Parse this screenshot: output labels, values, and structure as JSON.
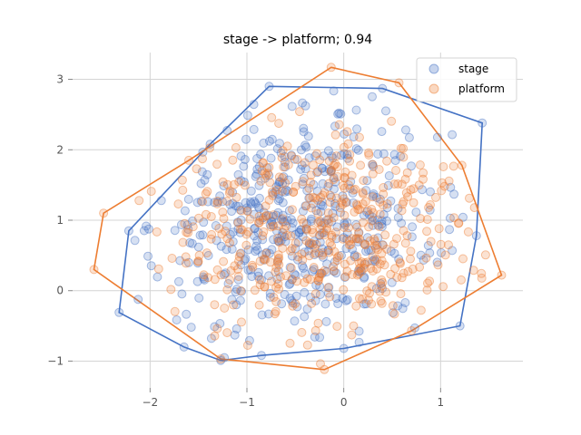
{
  "chart_data": {
    "type": "scatter",
    "title": "stage -> platform; 0.94",
    "xlabel": "",
    "ylabel": "",
    "xlim": [
      -2.8,
      1.85
    ],
    "ylim": [
      -1.38,
      3.38
    ],
    "x_ticks": [
      -2,
      -1,
      0,
      1
    ],
    "y_ticks": [
      -1,
      0,
      1,
      2,
      3
    ],
    "x_tick_labels": [
      "−2",
      "−1",
      "0",
      "1"
    ],
    "y_tick_labels": [
      "−1",
      "0",
      "1",
      "2",
      "3"
    ],
    "grid": true,
    "legend_position": "top-right",
    "series": [
      {
        "name": "stage",
        "color": "#4472c4",
        "center": [
          -0.45,
          0.92
        ],
        "spread": [
          0.72,
          0.78
        ],
        "count": 480,
        "hull": [
          [
            -0.77,
            2.9
          ],
          [
            0.4,
            2.87
          ],
          [
            1.43,
            2.38
          ],
          [
            1.37,
            0.78
          ],
          [
            1.2,
            -0.5
          ],
          [
            0.0,
            -0.82
          ],
          [
            -0.85,
            -0.92
          ],
          [
            -1.27,
            -0.99
          ],
          [
            -1.65,
            -0.8
          ],
          [
            -2.32,
            -0.31
          ],
          [
            -2.22,
            0.85
          ],
          [
            -1.38,
            2.08
          ]
        ]
      },
      {
        "name": "platform",
        "color": "#ed7d31",
        "center": [
          -0.25,
          0.85
        ],
        "spread": [
          0.78,
          0.75
        ],
        "count": 480,
        "hull": [
          [
            -0.13,
            3.17
          ],
          [
            0.57,
            2.95
          ],
          [
            1.22,
            1.78
          ],
          [
            1.63,
            0.22
          ],
          [
            0.7,
            -0.57
          ],
          [
            -0.2,
            -1.12
          ],
          [
            -1.27,
            -0.97
          ],
          [
            -2.58,
            0.3
          ],
          [
            -2.48,
            1.1
          ],
          [
            -1.6,
            1.85
          ]
        ]
      }
    ]
  }
}
